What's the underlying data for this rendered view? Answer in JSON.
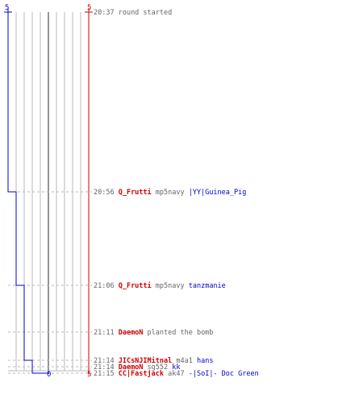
{
  "colors": {
    "ct": "#0000cc",
    "t": "#cc0000",
    "grid": "#b8b8b8",
    "center": "#707070",
    "time": "#666666",
    "plain": "#666666"
  },
  "axis": {
    "left_top": "5",
    "right_top": "5",
    "bottom_center": "0",
    "bottom_right": "5"
  },
  "chart_data": {
    "type": "line",
    "title": "",
    "xlabel": "",
    "ylabel": "",
    "xlim": [
      -5,
      5
    ],
    "series": [
      {
        "color": "#0000cc",
        "points": [
          {
            "time": "20:37",
            "x": -5
          },
          {
            "time": "20:56",
            "x": -4
          },
          {
            "time": "21:06",
            "x": -3
          },
          {
            "time": "21:14",
            "x": -2
          },
          {
            "time": "21:15",
            "x": 0
          }
        ]
      }
    ]
  },
  "events": [
    {
      "time": "20:37",
      "parts": [
        {
          "text": "round started",
          "role": "plain"
        }
      ]
    },
    {
      "time": "20:56",
      "parts": [
        {
          "text": "Q_Frutti",
          "role": "t"
        },
        {
          "text": "mp5navy",
          "role": "plain"
        },
        {
          "text": "|YY|Guinea_Pig",
          "role": "ct"
        }
      ]
    },
    {
      "time": "21:06",
      "parts": [
        {
          "text": "Q_Frutti",
          "role": "t"
        },
        {
          "text": "mp5navy",
          "role": "plain"
        },
        {
          "text": "tanzmanie",
          "role": "ct"
        }
      ]
    },
    {
      "time": "21:11",
      "parts": [
        {
          "text": "DaemoN",
          "role": "t"
        },
        {
          "text": "planted the bomb",
          "role": "plain"
        }
      ]
    },
    {
      "time": "21:14",
      "parts": [
        {
          "text": "JICsNJIMitnal",
          "role": "t"
        },
        {
          "text": "m4a1",
          "role": "plain"
        },
        {
          "text": "hans",
          "role": "ct"
        }
      ]
    },
    {
      "time": "21:14",
      "parts": [
        {
          "text": "DaemoN",
          "role": "t"
        },
        {
          "text": "sg552",
          "role": "plain"
        },
        {
          "text": "kk",
          "role": "ct"
        }
      ]
    },
    {
      "time": "21:15",
      "parts": [
        {
          "text": "CC|Fastjack",
          "role": "t"
        },
        {
          "text": "ak47",
          "role": "plain"
        },
        {
          "text": "-|SoI|- Doc Green",
          "role": "ct"
        }
      ]
    }
  ]
}
